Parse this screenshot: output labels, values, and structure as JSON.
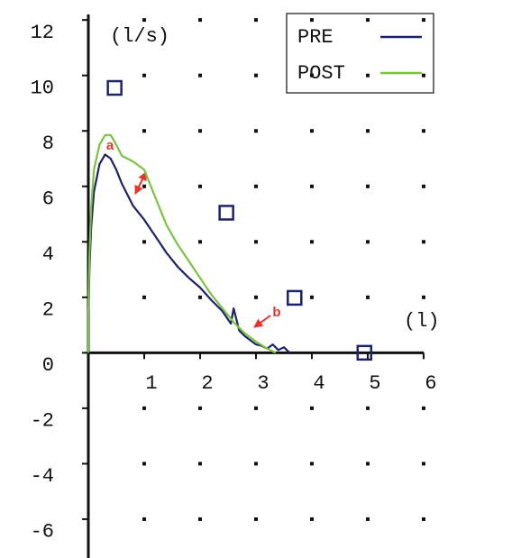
{
  "chart_data": {
    "type": "line",
    "x_label": "(l)",
    "y_label": "(l/s)",
    "xlim": [
      0,
      6
    ],
    "ylim": [
      -7.4,
      12.2
    ],
    "xticks": [
      1,
      2,
      3,
      4,
      5,
      6
    ],
    "yticks": [
      -6,
      -4,
      -2,
      0,
      2,
      4,
      6,
      8,
      10,
      12
    ],
    "grid": "dots",
    "legend": "upper right",
    "series": [
      {
        "name": "PRE",
        "color": "#1a2466",
        "x": [
          0,
          0,
          0.02,
          0.05,
          0.1,
          0.2,
          0.3,
          0.4,
          0.5,
          0.6,
          0.8,
          1.0,
          1.2,
          1.4,
          1.6,
          1.8,
          2.0,
          2.2,
          2.4,
          2.5,
          2.55,
          2.6,
          2.65,
          2.7,
          2.8,
          2.9,
          3.0,
          3.1,
          3.2,
          3.3,
          3.4,
          3.5,
          3.6
        ],
        "values": [
          0,
          1.0,
          3.0,
          4.5,
          5.8,
          6.8,
          7.15,
          7.0,
          6.6,
          6.1,
          5.3,
          4.8,
          4.2,
          3.6,
          3.1,
          2.7,
          2.35,
          1.9,
          1.5,
          1.2,
          1.05,
          1.6,
          1.2,
          0.8,
          0.6,
          0.45,
          0.3,
          0.25,
          0.15,
          0.3,
          0.1,
          0.2,
          0.0
        ]
      },
      {
        "name": "POST",
        "color": "#7cc242",
        "x": [
          0,
          0,
          0.02,
          0.05,
          0.1,
          0.2,
          0.3,
          0.4,
          0.5,
          0.6,
          0.8,
          1.0,
          1.2,
          1.4,
          1.6,
          1.8,
          2.0,
          2.2,
          2.4,
          2.6,
          2.8,
          3.0,
          3.2,
          3.35
        ],
        "values": [
          0,
          1.5,
          3.5,
          5.2,
          6.6,
          7.5,
          7.85,
          7.85,
          7.5,
          7.1,
          6.9,
          6.6,
          5.6,
          4.6,
          3.9,
          3.3,
          2.7,
          2.1,
          1.6,
          1.1,
          0.7,
          0.4,
          0.15,
          0.0
        ]
      }
    ],
    "predicted": {
      "color": "#1a2466",
      "marker": "square",
      "x": [
        0.47,
        2.47,
        3.69,
        4.94
      ],
      "values": [
        9.55,
        5.05,
        1.98,
        0.0
      ]
    },
    "annotations": [
      {
        "text": "a",
        "color": "#e8322b"
      },
      {
        "text": "b",
        "color": "#e8322b"
      }
    ]
  }
}
